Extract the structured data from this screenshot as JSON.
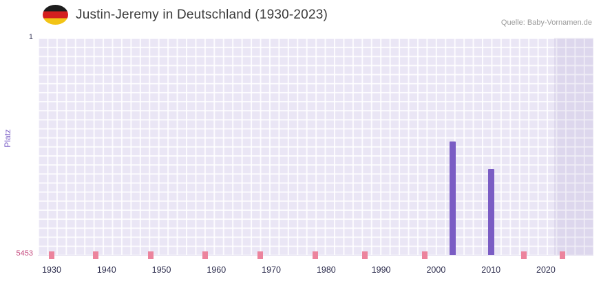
{
  "header": {
    "title": "Justin-Jeremy in Deutschland (1930-2023)",
    "source": "Quelle: Baby-Vornamen.de",
    "flag_icon": "german-flag"
  },
  "chart_data": {
    "type": "bar",
    "title": "Justin-Jeremy in Deutschland (1930-2023)",
    "ylabel": "Platz",
    "xlabel": "",
    "y_axis": {
      "top_label": "1",
      "bottom_label": "5453",
      "min": 1,
      "max": 5453,
      "inverted": true
    },
    "x_range": {
      "start_year": 1930,
      "end_year": 2023
    },
    "x_ticks": [
      "1930",
      "1940",
      "1950",
      "1960",
      "1970",
      "1980",
      "1990",
      "2000",
      "2010",
      "2020"
    ],
    "bars": [
      {
        "year": 2003,
        "rank": 2600
      },
      {
        "year": 2010,
        "rank": 3290
      }
    ],
    "low_rank_marker_years": [
      1930,
      1938,
      1948,
      1958,
      1968,
      1978,
      1987,
      1998,
      2016,
      2023
    ],
    "highlight_band": {
      "from_year": 2021.5,
      "to_year": 2024
    },
    "grid": true,
    "legend": "none",
    "colors": {
      "bar": "#7a5cc4",
      "marker": "#ec849d",
      "plot_background": "#eae6f5",
      "band_overlay": "rgba(110,90,170,0.10)",
      "y_label": "#7a5ec6",
      "min_rank_label": "#c5497e",
      "tick_label": "#2f2f4f"
    }
  }
}
